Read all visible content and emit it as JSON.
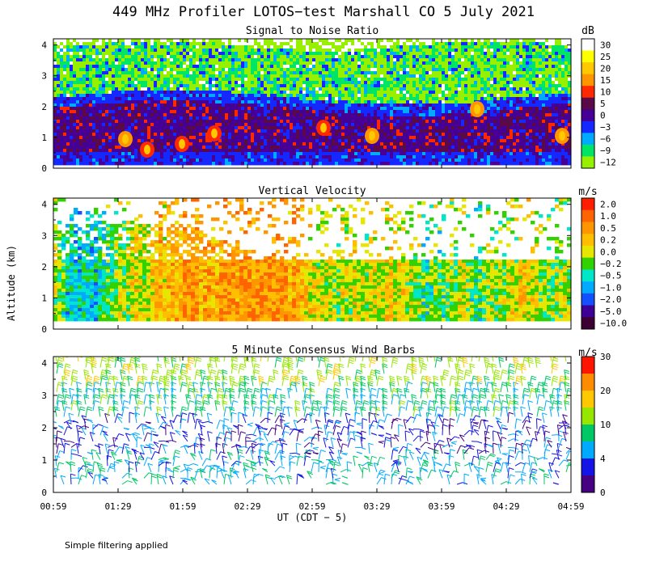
{
  "title": "449 MHz Profiler LOTOS−test Marshall CO  5 July 2021",
  "xlabel": "UT  (CDT − 5)",
  "ylabel": "Altitude (km)",
  "footnote": "Simple filtering applied",
  "chart_data": [
    {
      "type": "heatmap",
      "title": "Signal to Noise Ratio",
      "unit": "dB",
      "x_ticks": [
        "00:59",
        "01:29",
        "01:59",
        "02:29",
        "02:59",
        "03:29",
        "03:59",
        "04:29",
        "04:59"
      ],
      "y_ticks": [
        "0",
        "1",
        "2",
        "3",
        "4"
      ],
      "ylim": [
        0,
        4.2
      ],
      "colorbar": {
        "labels": [
          "30",
          "25",
          "20",
          "15",
          "10",
          "5",
          "0",
          "−3",
          "−6",
          "−9",
          "−12"
        ],
        "colors": [
          "#ffffff",
          "#ffff00",
          "#ffc800",
          "#ff9600",
          "#ff2800",
          "#5a0a46",
          "#460096",
          "#1428ff",
          "#00aaff",
          "#00e664",
          "#96f000"
        ]
      },
      "layers": [
        {
          "label": "−9",
          "altitude_km": [
            2.1,
            4.2
          ]
        },
        {
          "label": "−3",
          "altitude_km": [
            1.8,
            2.3
          ]
        },
        {
          "label": "0",
          "altitude_km": [
            0.2,
            2.0
          ]
        },
        {
          "label": "10",
          "altitude_km": [
            0.6,
            1.5
          ]
        }
      ]
    },
    {
      "type": "heatmap",
      "title": "Vertical Velocity",
      "unit": "m/s",
      "x_ticks": [
        "00:59",
        "01:29",
        "01:59",
        "02:29",
        "02:59",
        "03:29",
        "03:59",
        "04:29",
        "04:59"
      ],
      "y_ticks": [
        "0",
        "1",
        "2",
        "3",
        "4"
      ],
      "ylim": [
        0,
        4.2
      ],
      "colorbar": {
        "labels": [
          "2.0",
          "1.0",
          "0.5",
          "0.2",
          "0.0",
          "−0.2",
          "−0.5",
          "−1.0",
          "−2.0",
          "−5.0",
          "−10.0"
        ],
        "colors": [
          "#ff1e00",
          "#ff6400",
          "#ff9600",
          "#ffbe00",
          "#e6e600",
          "#32d200",
          "#00e6c8",
          "#00aaff",
          "#1450ff",
          "#3c0096",
          "#3c0032"
        ]
      }
    },
    {
      "type": "scatter",
      "title": "5 Minute Consensus Wind Barbs",
      "unit": "m/s",
      "x_ticks": [
        "00:59",
        "01:29",
        "01:59",
        "02:29",
        "02:59",
        "03:29",
        "03:59",
        "04:29",
        "04:59"
      ],
      "y_ticks": [
        "0",
        "1",
        "2",
        "3",
        "4"
      ],
      "ylim": [
        0,
        4.2
      ],
      "colorbar": {
        "labels": [
          "30",
          "20",
          "10",
          "4",
          "0"
        ],
        "colors": [
          "#ff1400",
          "#ff8c00",
          "#ffc800",
          "#96e600",
          "#00c864",
          "#00aaff",
          "#1414e6",
          "#460082"
        ]
      },
      "speed_bands": [
        {
          "altitude_km": [
            0.2,
            1.2
          ],
          "speed_ms": 6
        },
        {
          "altitude_km": [
            1.2,
            2.3
          ],
          "speed_ms": 3
        },
        {
          "altitude_km": [
            2.3,
            3.2
          ],
          "speed_ms": 8
        },
        {
          "altitude_km": [
            3.2,
            4.2
          ],
          "speed_ms": 12
        }
      ]
    }
  ]
}
